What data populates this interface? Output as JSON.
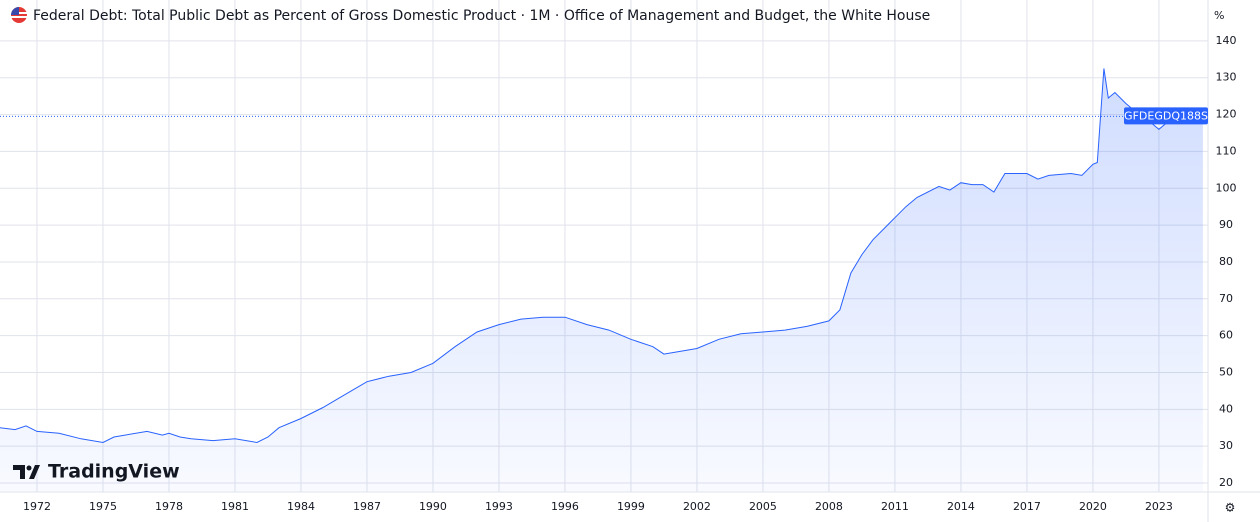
{
  "chart_data": {
    "type": "line",
    "title": "Federal Debt: Total Public Debt as Percent of Gross Domestic Product · 1M · Office of Management and Budget, the White House",
    "y_unit": "%",
    "watermark": "TradingView",
    "x": [
      1970.3,
      1971,
      1971.5,
      1972,
      1973,
      1974,
      1975,
      1975.5,
      1976,
      1977,
      1977.7,
      1978,
      1978.5,
      1979,
      1980,
      1981,
      1982,
      1982.5,
      1983,
      1984,
      1985,
      1986,
      1987,
      1988,
      1989,
      1990,
      1991,
      1992,
      1993,
      1994,
      1995,
      1996,
      1997,
      1998,
      1999,
      2000,
      2000.5,
      2001,
      2002,
      2003,
      2004,
      2005,
      2006,
      2007,
      2008,
      2008.5,
      2009,
      2009.5,
      2010,
      2011,
      2011.5,
      2012,
      2013,
      2013.5,
      2014,
      2014.5,
      2015,
      2015.5,
      2016,
      2017,
      2017.5,
      2018,
      2019,
      2019.5,
      2020,
      2020.2,
      2020.5,
      2020.7,
      2021,
      2021.5,
      2022,
      2022.5,
      2023,
      2023.5,
      2024,
      2024.5,
      2025
    ],
    "series": [
      {
        "name": "GFDEGDQ188S",
        "color": "#2962ff",
        "values": [
          35,
          34.5,
          35.5,
          34,
          33.5,
          32,
          31,
          32.5,
          33,
          34,
          33,
          33.5,
          32.5,
          32,
          31.5,
          32,
          31,
          32.5,
          35,
          37.5,
          40.5,
          44,
          47.5,
          49,
          50,
          52.5,
          57,
          61,
          63,
          64.5,
          65,
          65,
          63,
          61.5,
          59,
          57,
          55,
          55.5,
          56.5,
          59,
          60.5,
          61,
          61.5,
          62.5,
          64,
          67,
          77,
          82,
          86,
          92,
          95,
          97.5,
          100.5,
          99.5,
          101.5,
          101,
          101,
          99,
          104,
          104,
          102.5,
          103.5,
          104,
          103.5,
          106.5,
          107,
          132.5,
          124.5,
          126,
          123,
          120.5,
          118.5,
          116,
          118.5,
          120,
          121,
          119.5
        ]
      }
    ],
    "xlim": [
      1970.32,
      2025.23
    ],
    "ylim": [
      17.56,
      151.1
    ],
    "xticks": [
      1972,
      1975,
      1978,
      1981,
      1984,
      1987,
      1990,
      1993,
      1996,
      1999,
      2002,
      2005,
      2008,
      2011,
      2014,
      2017,
      2020,
      2023
    ],
    "yticks": [
      20,
      30,
      40,
      50,
      60,
      70,
      80,
      90,
      100,
      110,
      120,
      130,
      140
    ],
    "grid": true
  }
}
